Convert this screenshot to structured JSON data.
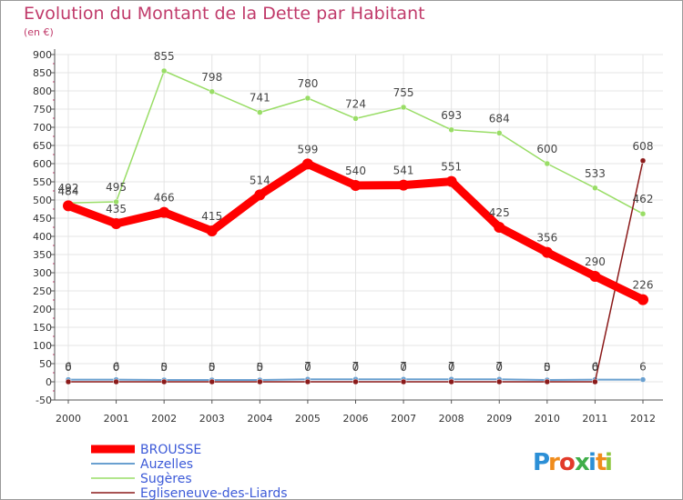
{
  "chart_data": {
    "type": "line",
    "title": "Evolution du Montant de la Dette par Habitant",
    "subtitle": "(en €)",
    "xlabel": "",
    "ylabel": "",
    "x": [
      "2000",
      "2001",
      "2002",
      "2003",
      "2004",
      "2005",
      "2006",
      "2007",
      "2008",
      "2009",
      "2010",
      "2011",
      "2012"
    ],
    "ylim": [
      -50,
      900
    ],
    "yticks": [
      -50,
      0,
      50,
      100,
      150,
      200,
      250,
      300,
      350,
      400,
      450,
      500,
      550,
      600,
      650,
      700,
      750,
      800,
      850,
      900
    ],
    "grid": true,
    "legend_position": "bottom-left",
    "series": [
      {
        "name": "BROUSSE",
        "color": "#ff0000",
        "values": [
          484,
          435,
          466,
          415,
          514,
          599,
          540,
          541,
          551,
          425,
          356,
          290,
          226
        ],
        "labels": [
          "484",
          "435",
          "466",
          "415",
          "514",
          "599",
          "540",
          "541",
          "551",
          "425",
          "356",
          "290",
          "226"
        ]
      },
      {
        "name": "Auzelles",
        "color": "#6aa0d0",
        "values": [
          6,
          6,
          5,
          5,
          5,
          7,
          7,
          7,
          7,
          7,
          5,
          6,
          6
        ],
        "labels": [
          "6",
          "6",
          "5",
          "5",
          "5",
          "7",
          "7",
          "7",
          "7",
          "7",
          "5",
          "6",
          "6"
        ]
      },
      {
        "name": "Sugères",
        "color": "#99dd66",
        "values": [
          492,
          495,
          855,
          798,
          741,
          780,
          724,
          755,
          693,
          684,
          600,
          533,
          462
        ],
        "labels": [
          "492",
          "495",
          "855",
          "798",
          "741",
          "780",
          "724",
          "755",
          "693",
          "684",
          "600",
          "533",
          "462"
        ]
      },
      {
        "name": "Egliseneuve-des-Liards",
        "color": "#8b1a1a",
        "values": [
          0,
          0,
          0,
          0,
          0,
          0,
          0,
          0,
          0,
          0,
          0,
          0,
          608
        ],
        "labels": [
          "0",
          "0",
          "0",
          "0",
          "0",
          "0",
          "0",
          "0",
          "0",
          "0",
          "0",
          "0",
          "608"
        ]
      }
    ]
  },
  "logo": {
    "text": "Proxiti"
  }
}
